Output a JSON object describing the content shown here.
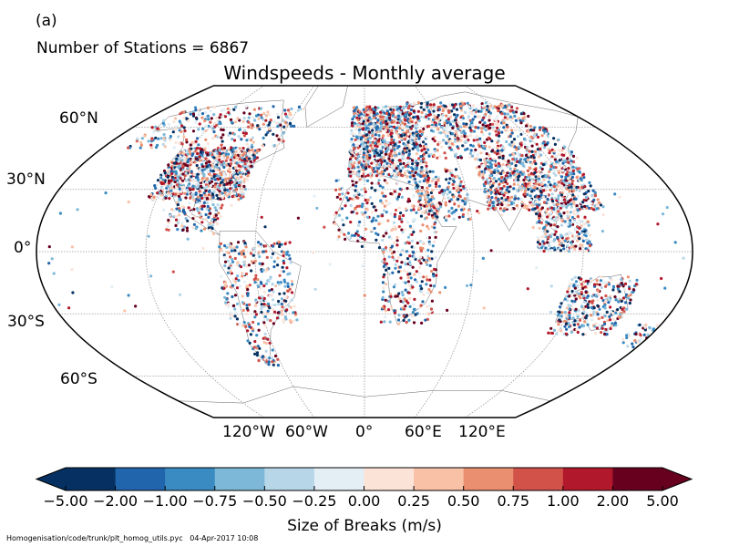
{
  "panel_label": "(a)",
  "station_count_text": "Number of Stations = 6867",
  "title": "Windspeeds - Monthly average",
  "lat_labels": [
    "60°N",
    "30°N",
    "0°",
    "30°S",
    "60°S"
  ],
  "lon_labels": [
    "120°W",
    "60°W",
    "0°",
    "60°E",
    "120°E"
  ],
  "colorbar": {
    "label": "Size of Breaks (m/s)",
    "ticks": [
      "−5.00",
      "−2.00",
      "−1.00",
      "−0.75",
      "−0.50",
      "−0.25",
      "0.00",
      "0.25",
      "0.50",
      "0.75",
      "1.00",
      "2.00",
      "5.00"
    ],
    "colors": [
      "#053061",
      "#2166ac",
      "#3a8bc2",
      "#7db8d9",
      "#b7d7e8",
      "#e3eef5",
      "#fbe3d8",
      "#f9c2a7",
      "#ea8f6f",
      "#d2524a",
      "#b2182b",
      "#67001f"
    ]
  },
  "footer": {
    "file": "Homogenisation/code/trunk/plt_homog_utils.pyc",
    "timestamp": "04-Apr-2017 10:08"
  }
}
